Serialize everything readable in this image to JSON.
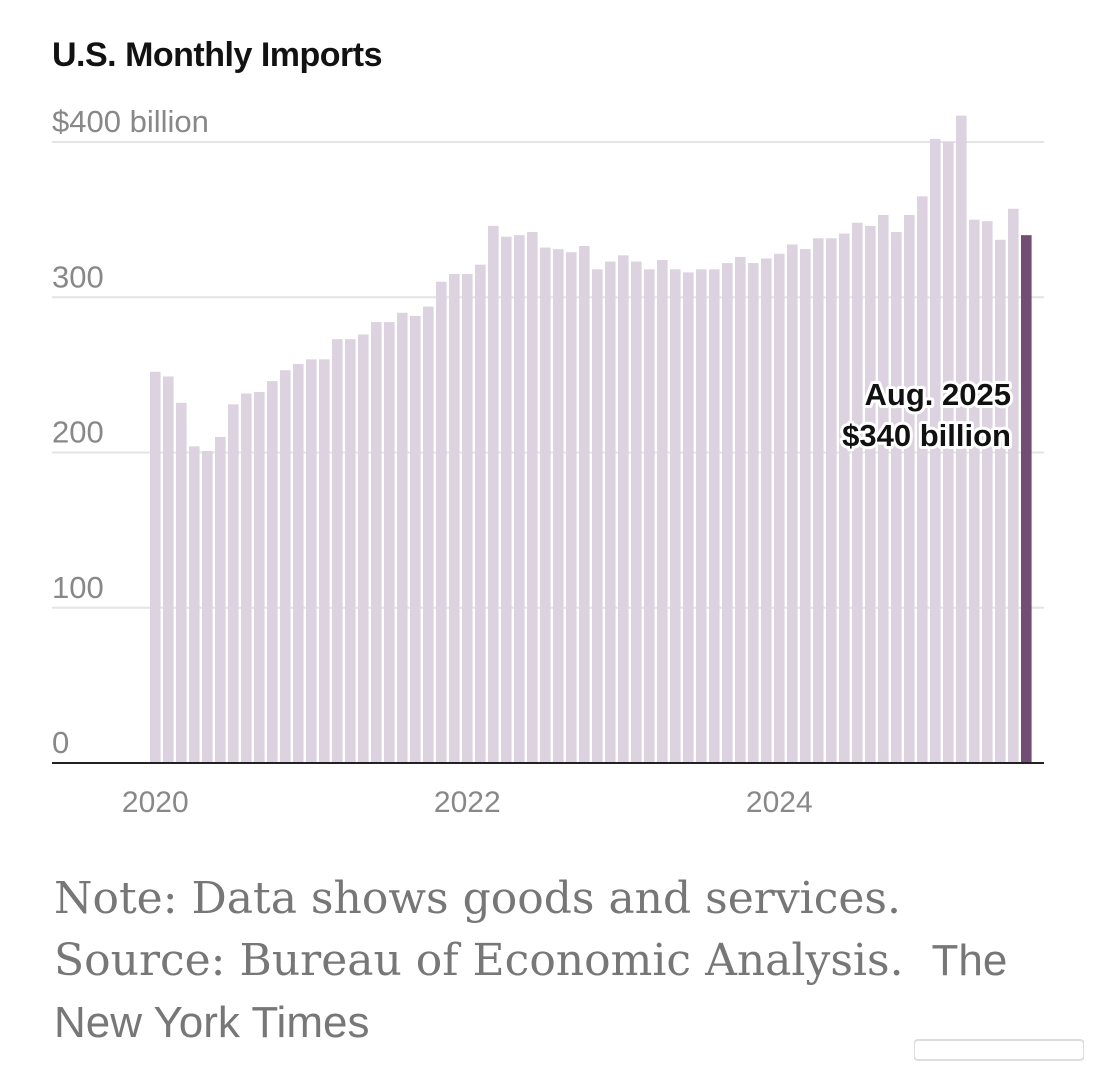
{
  "title": "U.S. Monthly Imports",
  "chart_data": {
    "type": "bar",
    "title": "U.S. Monthly Imports",
    "ylabel": "$400 billion",
    "ylim": [
      0,
      400
    ],
    "yticks": [
      {
        "value": 400,
        "label": "$400 billion"
      },
      {
        "value": 300,
        "label": "300"
      },
      {
        "value": 200,
        "label": "200"
      },
      {
        "value": 100,
        "label": "100"
      },
      {
        "value": 0,
        "label": "0"
      }
    ],
    "xticks": [
      {
        "index": 0,
        "label": "2020"
      },
      {
        "index": 24,
        "label": "2022"
      },
      {
        "index": 48,
        "label": "2024"
      }
    ],
    "start": "Jan. 2020",
    "end": "Aug. 2025",
    "values": [
      252,
      249,
      232,
      204,
      201,
      210,
      231,
      238,
      239,
      246,
      253,
      257,
      260,
      260,
      273,
      273,
      276,
      284,
      284,
      290,
      288,
      294,
      310,
      315,
      315,
      321,
      346,
      339,
      340,
      342,
      332,
      331,
      329,
      333,
      318,
      323,
      327,
      323,
      318,
      324,
      318,
      316,
      318,
      318,
      322,
      326,
      322,
      325,
      328,
      334,
      331,
      338,
      338,
      341,
      348,
      346,
      353,
      342,
      353,
      365,
      402,
      400,
      417,
      350,
      349,
      337,
      357,
      340
    ],
    "highlight_index": 67,
    "colors": {
      "bar": "#ddd2df",
      "highlight": "#734e74",
      "grid": "#e4e4e4",
      "axis": "#222222",
      "tick_text": "#888888"
    },
    "annotation": {
      "line1": "Aug. 2025",
      "line2": "$340 billion"
    }
  },
  "note": {
    "text": "Note: Data shows goods and services.  Source: Bureau of Economic Analysis.",
    "credit": "The New York Times"
  }
}
